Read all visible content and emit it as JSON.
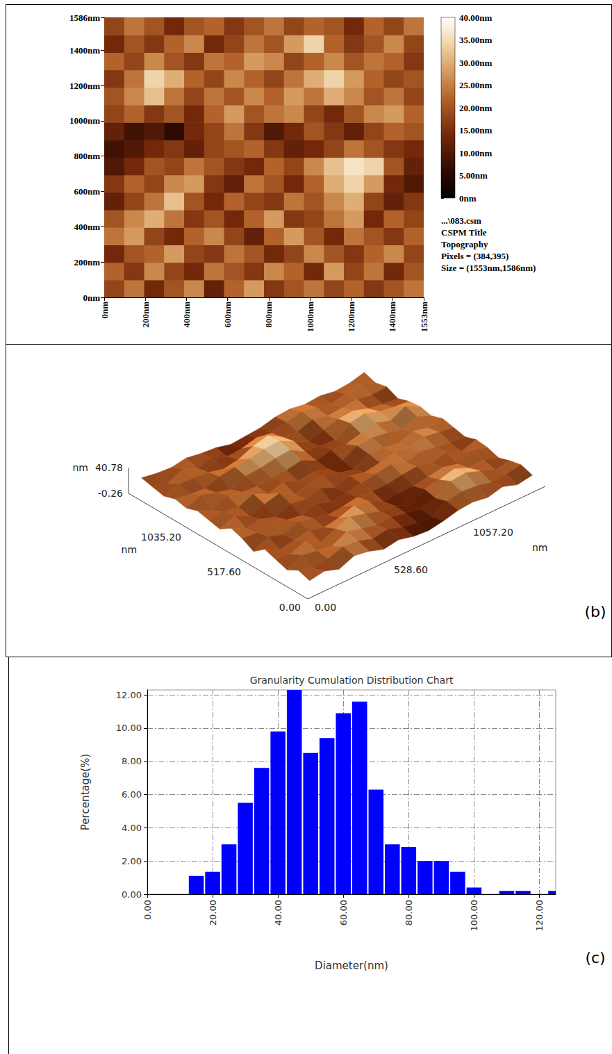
{
  "chart_data": [
    {
      "type": "heatmap",
      "xlim": [
        0,
        1553
      ],
      "xticks": [
        {
          "value": 0,
          "label": "0nm"
        },
        {
          "value": 200,
          "label": "200nm"
        },
        {
          "value": 400,
          "label": "400nm"
        },
        {
          "value": 600,
          "label": "600nm"
        },
        {
          "value": 800,
          "label": "800nm"
        },
        {
          "value": 1000,
          "label": "1000nm"
        },
        {
          "value": 1200,
          "label": "1200nm"
        },
        {
          "value": 1400,
          "label": "1400nm"
        },
        {
          "value": 1553,
          "label": "1553nm"
        }
      ],
      "ylim": [
        0,
        1586
      ],
      "yticks": [
        {
          "value": 0,
          "label": "0nm"
        },
        {
          "value": 200,
          "label": "200nm"
        },
        {
          "value": 400,
          "label": "400nm"
        },
        {
          "value": 600,
          "label": "600nm"
        },
        {
          "value": 800,
          "label": "800nm"
        },
        {
          "value": 1000,
          "label": "1000nm"
        },
        {
          "value": 1200,
          "label": "1200nm"
        },
        {
          "value": 1400,
          "label": "1400nm"
        },
        {
          "value": 1586,
          "label": "1586nm"
        }
      ],
      "z": [
        [
          18,
          24,
          14,
          20,
          26,
          12,
          22,
          28,
          16,
          20,
          24,
          18,
          22,
          16,
          20,
          24
        ],
        [
          22,
          16,
          26,
          18,
          14,
          24,
          20,
          16,
          26,
          22,
          14,
          28,
          18,
          24,
          14,
          20
        ],
        [
          14,
          20,
          22,
          28,
          18,
          16,
          24,
          20,
          14,
          18,
          26,
          20,
          16,
          22,
          26,
          18
        ],
        [
          24,
          28,
          18,
          14,
          22,
          26,
          18,
          12,
          22,
          28,
          20,
          14,
          24,
          20,
          16,
          22
        ],
        [
          20,
          26,
          30,
          24,
          16,
          20,
          14,
          22,
          28,
          16,
          18,
          24,
          28,
          14,
          22,
          18
        ],
        [
          12,
          18,
          24,
          32,
          20,
          14,
          22,
          18,
          16,
          24,
          20,
          26,
          30,
          18,
          12,
          16
        ],
        [
          16,
          22,
          18,
          26,
          28,
          16,
          12,
          24,
          20,
          14,
          22,
          30,
          34,
          28,
          14,
          10
        ],
        [
          10,
          14,
          20,
          18,
          24,
          20,
          16,
          14,
          22,
          18,
          26,
          32,
          36,
          34,
          20,
          12
        ],
        [
          8,
          10,
          14,
          16,
          12,
          18,
          20,
          22,
          16,
          12,
          14,
          18,
          24,
          20,
          16,
          14
        ],
        [
          12,
          8,
          10,
          6,
          14,
          18,
          24,
          16,
          10,
          14,
          20,
          16,
          12,
          18,
          22,
          20
        ],
        [
          18,
          22,
          16,
          20,
          14,
          22,
          28,
          20,
          24,
          26,
          18,
          14,
          20,
          26,
          28,
          22
        ],
        [
          20,
          26,
          32,
          24,
          18,
          24,
          20,
          26,
          22,
          28,
          24,
          30,
          26,
          20,
          24,
          18
        ],
        [
          16,
          24,
          34,
          30,
          22,
          18,
          26,
          22,
          18,
          24,
          30,
          34,
          28,
          22,
          18,
          20
        ],
        [
          22,
          18,
          26,
          20,
          16,
          24,
          22,
          28,
          26,
          18,
          22,
          26,
          20,
          24,
          22,
          16
        ],
        [
          14,
          20,
          16,
          22,
          26,
          14,
          18,
          24,
          20,
          28,
          34,
          22,
          16,
          20,
          26,
          18
        ],
        [
          18,
          24,
          20,
          14,
          20,
          22,
          16,
          20,
          24,
          18,
          22,
          20,
          14,
          22,
          18,
          24
        ]
      ],
      "colorbar_range": [
        0,
        40
      ],
      "colorbar_ticks": [
        {
          "value": 0,
          "label": "0nm"
        },
        {
          "value": 5,
          "label": "5.00nm"
        },
        {
          "value": 10,
          "label": "10.00nm"
        },
        {
          "value": 15,
          "label": "15.00nm"
        },
        {
          "value": 20,
          "label": "20.00nm"
        },
        {
          "value": 25,
          "label": "25.00nm"
        },
        {
          "value": 30,
          "label": "30.00nm"
        },
        {
          "value": 35,
          "label": "35.00nm"
        },
        {
          "value": 40,
          "label": "40.00nm"
        }
      ],
      "annotations": [
        "...\\083.csm",
        "CSPM Title",
        "Topography",
        "Pixels = (384,395)",
        "Size = (1553nm,1586nm)"
      ]
    },
    {
      "type": "surface3d",
      "panel_label": "(b)",
      "xlabel": "nm",
      "ylabel": "nm",
      "zlabel": "nm",
      "xlim": [
        0,
        1553
      ],
      "xticks": [
        {
          "value": 0,
          "label": "0.00"
        },
        {
          "value": 517.6,
          "label": "517.60"
        },
        {
          "value": 1035.2,
          "label": "1035.20"
        }
      ],
      "ylim": [
        0,
        1586
      ],
      "yticks": [
        {
          "value": 0,
          "label": "0.00"
        },
        {
          "value": 528.6,
          "label": "528.60"
        },
        {
          "value": 1057.2,
          "label": "1057.20"
        }
      ],
      "zlim": [
        -0.26,
        40.78
      ],
      "zticks": [
        {
          "value": -0.26,
          "label": "-0.26"
        },
        {
          "value": 40.78,
          "label": "40.78"
        }
      ]
    },
    {
      "type": "histogram",
      "panel_label": "(c)",
      "title": "Granularity Cumulation Distribution Chart",
      "xlabel": "Diameter(nm)",
      "ylabel": "Percentage(%)",
      "bins": [
        12.5,
        17.5,
        22.5,
        27.5,
        32.5,
        37.5,
        42.5,
        47.5,
        52.5,
        57.5,
        62.5,
        67.5,
        72.5,
        77.5,
        82.5,
        87.5,
        92.5,
        97.5,
        102.5,
        107.5,
        112.5,
        117.5,
        122.5,
        127.5
      ],
      "values": [
        1.1,
        1.35,
        3.0,
        5.5,
        7.6,
        9.8,
        12.3,
        8.5,
        9.4,
        10.9,
        11.6,
        6.3,
        3.0,
        2.85,
        2.0,
        2.0,
        1.35,
        0.4,
        0,
        0.2,
        0.2,
        0,
        0.2
      ],
      "color": "#0000ff",
      "xlim": [
        0,
        125
      ],
      "xticks": [
        {
          "value": 0,
          "label": "0.00"
        },
        {
          "value": 20,
          "label": "20.00"
        },
        {
          "value": 40,
          "label": "40.00"
        },
        {
          "value": 60,
          "label": "60.00"
        },
        {
          "value": 80,
          "label": "80.00"
        },
        {
          "value": 100,
          "label": "100.00"
        },
        {
          "value": 120,
          "label": "120.00"
        }
      ],
      "ylim": [
        0,
        12.3
      ],
      "yticks": [
        {
          "value": 0,
          "label": "0.00"
        },
        {
          "value": 2,
          "label": "2.00"
        },
        {
          "value": 4,
          "label": "4.00"
        },
        {
          "value": 6,
          "label": "6.00"
        },
        {
          "value": 8,
          "label": "8.00"
        },
        {
          "value": 10,
          "label": "10.00"
        },
        {
          "value": 12,
          "label": "12.00"
        }
      ],
      "grid": true
    }
  ]
}
